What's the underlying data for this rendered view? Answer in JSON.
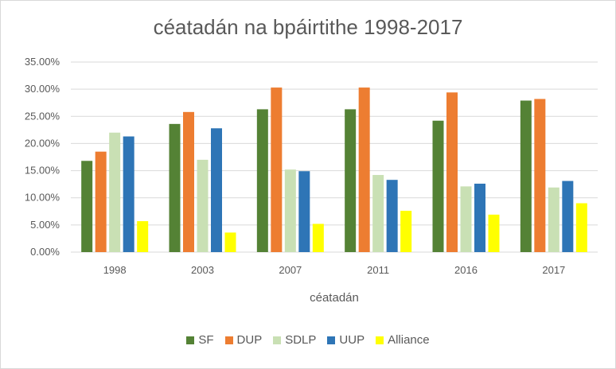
{
  "chart_data": {
    "type": "bar",
    "title": "céatadán na bpáirtithe 1998-2017",
    "xlabel": "céatadán",
    "ylabel": "",
    "ylim": [
      0,
      35
    ],
    "yticks": [
      "0.00%",
      "5.00%",
      "10.00%",
      "15.00%",
      "20.00%",
      "25.00%",
      "30.00%",
      "35.00%"
    ],
    "grid": true,
    "legend_position": "bottom",
    "categories": [
      "1998",
      "2003",
      "2007",
      "2011",
      "2016",
      "2017"
    ],
    "series": [
      {
        "name": "SF",
        "color": "#548235",
        "values": [
          16.8,
          23.6,
          26.3,
          26.3,
          24.2,
          27.9
        ]
      },
      {
        "name": "DUP",
        "color": "#ED7D31",
        "values": [
          18.5,
          25.8,
          30.3,
          30.3,
          29.4,
          28.2
        ]
      },
      {
        "name": "SDLP",
        "color": "#C9E0B4",
        "values": [
          22.0,
          17.0,
          15.2,
          14.2,
          12.1,
          11.9
        ]
      },
      {
        "name": "UUP",
        "color": "#2E75B6",
        "values": [
          21.3,
          22.8,
          14.9,
          13.3,
          12.6,
          13.1
        ]
      },
      {
        "name": "Alliance",
        "color": "#FFFF00",
        "values": [
          5.7,
          3.6,
          5.2,
          7.6,
          6.9,
          9.0
        ]
      }
    ]
  }
}
